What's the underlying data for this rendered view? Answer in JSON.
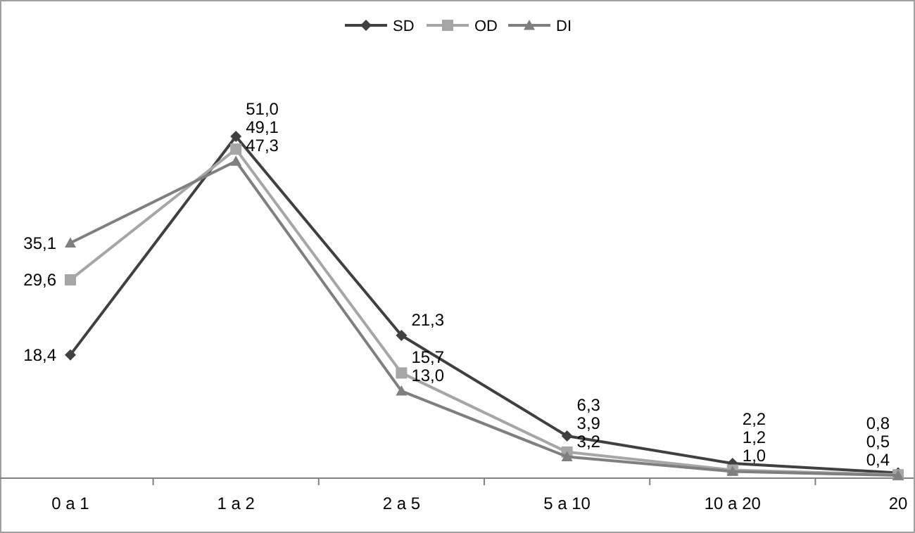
{
  "chart_data": {
    "type": "line",
    "categories": [
      "0 a 1",
      "1 a 2",
      "2 a 5",
      "5 a 10",
      "10 a 20",
      "20"
    ],
    "series": [
      {
        "name": "SD",
        "color": "#404040",
        "marker": "diamond",
        "values": [
          18.4,
          51.0,
          21.3,
          6.3,
          2.2,
          0.8
        ],
        "value_labels": [
          "18,4",
          "51,0",
          "21,3",
          "6,3",
          "2,2",
          "0,8"
        ]
      },
      {
        "name": "OD",
        "color": "#a6a6a6",
        "marker": "square",
        "values": [
          29.6,
          49.1,
          15.7,
          3.9,
          1.2,
          0.5
        ],
        "value_labels": [
          "29,6",
          "49,1",
          "15,7",
          "3,9",
          "1,2",
          "0,5"
        ]
      },
      {
        "name": "DI",
        "color": "#7f7f7f",
        "marker": "triangle",
        "values": [
          35.1,
          47.3,
          13.0,
          3.2,
          1.0,
          0.4
        ],
        "value_labels": [
          "35,1",
          "47,3",
          "13,0",
          "3,2",
          "1,0",
          "0,4"
        ]
      }
    ],
    "legend": "top"
  }
}
